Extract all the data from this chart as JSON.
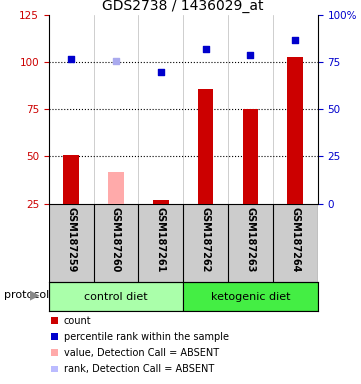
{
  "title": "GDS2738 / 1436029_at",
  "samples": [
    "GSM187259",
    "GSM187260",
    "GSM187261",
    "GSM187262",
    "GSM187263",
    "GSM187264"
  ],
  "bar_values": [
    51,
    null,
    27,
    86,
    75,
    103
  ],
  "bar_absent_values": [
    null,
    42,
    null,
    null,
    null,
    null
  ],
  "scatter_present_values": [
    102,
    null,
    95,
    107,
    104,
    112
  ],
  "scatter_absent_values": [
    null,
    101,
    null,
    null,
    null,
    null
  ],
  "ylim_left": [
    25,
    125
  ],
  "ylim_right": [
    0,
    100
  ],
  "yticks_left": [
    25,
    50,
    75,
    100,
    125
  ],
  "ytick_labels_left": [
    "25",
    "50",
    "75",
    "100",
    "125"
  ],
  "yticks_right": [
    0,
    25,
    50,
    75,
    100
  ],
  "ytick_labels_right": [
    "0",
    "25",
    "50",
    "75",
    "100%"
  ],
  "dotted_lines": [
    50,
    75,
    100
  ],
  "protocol_groups": [
    {
      "label": "control diet",
      "start": 0,
      "end": 3,
      "color": "#aaffaa"
    },
    {
      "label": "ketogenic diet",
      "start": 3,
      "end": 6,
      "color": "#44ee44"
    }
  ],
  "protocol_label": "protocol",
  "legend_items": [
    {
      "color": "#cc0000",
      "label": "count"
    },
    {
      "color": "#0000cc",
      "label": "percentile rank within the sample"
    },
    {
      "color": "#ffaaaa",
      "label": "value, Detection Call = ABSENT"
    },
    {
      "color": "#bbbbff",
      "label": "rank, Detection Call = ABSENT"
    }
  ],
  "bar_width": 0.35,
  "sample_col_bg": "#cccccc",
  "left_axis_color": "#cc0000",
  "right_axis_color": "#0000cc",
  "bar_color_present": "#cc0000",
  "bar_color_absent": "#ffaaaa",
  "scatter_color_present": "#0000cc",
  "scatter_color_absent": "#aaaaee"
}
